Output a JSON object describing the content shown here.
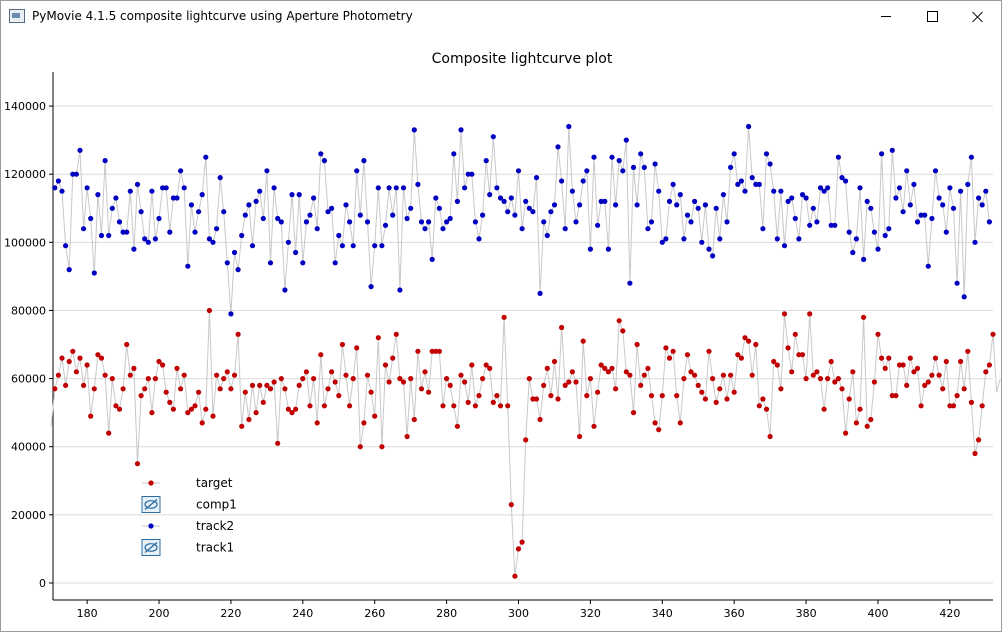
{
  "window": {
    "title": "PyMovie 4.1.5 composite lightcurve using Aperture Photometry",
    "minimize_icon": "minimize-icon",
    "maximize_icon": "maximize-icon",
    "close_icon": "close-icon"
  },
  "chart_data": {
    "type": "scatter",
    "title": "Composite lightcurve plot",
    "xlabel": "",
    "ylabel": "",
    "xlim": [
      170.5,
      432
    ],
    "ylim": [
      -5000,
      150000
    ],
    "xticks": [
      180,
      200,
      220,
      240,
      260,
      280,
      300,
      320,
      340,
      360,
      380,
      400,
      420
    ],
    "yticks": [
      0,
      20000,
      40000,
      60000,
      80000,
      100000,
      120000,
      140000
    ],
    "grid": "horizontal",
    "legend_position": "lower-left",
    "x_start": 170,
    "colors": {
      "target": "#c00000",
      "track2": "#0000c0",
      "line": "#c8c8c8",
      "hidden_icon": "#2a6ea3"
    },
    "legend": [
      {
        "name": "target",
        "visible": true,
        "color": "#c00000"
      },
      {
        "name": "comp1",
        "visible": false,
        "icon": "eye-off-icon"
      },
      {
        "name": "track2",
        "visible": true,
        "color": "#0000c0"
      },
      {
        "name": "track1",
        "visible": false,
        "icon": "eye-off-icon"
      }
    ],
    "series": [
      {
        "name": "target",
        "color": "#c00000",
        "values": [
          46000,
          57000,
          61000,
          66000,
          58000,
          65000,
          68000,
          62000,
          66000,
          58000,
          64000,
          49000,
          57000,
          67000,
          66000,
          61000,
          44000,
          60000,
          52000,
          51000,
          57000,
          70000,
          61000,
          63000,
          35000,
          55000,
          57000,
          60000,
          50000,
          60000,
          65000,
          64000,
          56000,
          53000,
          51000,
          63000,
          57000,
          61000,
          50000,
          51000,
          52000,
          56000,
          47000,
          51000,
          80000,
          49000,
          61000,
          57000,
          60000,
          62000,
          57000,
          61000,
          73000,
          46000,
          56000,
          48000,
          58000,
          50000,
          58000,
          53000,
          58000,
          57000,
          59000,
          41000,
          60000,
          57000,
          51000,
          50000,
          51000,
          58000,
          60000,
          62000,
          52000,
          60000,
          47000,
          67000,
          52000,
          57000,
          62000,
          59000,
          55000,
          70000,
          61000,
          52000,
          60000,
          69000,
          40000,
          47000,
          61000,
          56000,
          49000,
          72000,
          40000,
          64000,
          59000,
          66000,
          73000,
          60000,
          59000,
          43000,
          60000,
          48000,
          68000,
          57000,
          62000,
          56000,
          68000,
          68000,
          68000,
          52000,
          60000,
          58000,
          52000,
          46000,
          61000,
          59000,
          53000,
          64000,
          52000,
          55000,
          60000,
          64000,
          63000,
          53000,
          55000,
          52000,
          78000,
          52000,
          23000,
          2000,
          10000,
          12000,
          42000,
          60000,
          54000,
          54000,
          48000,
          58000,
          63000,
          55000,
          65000,
          54000,
          75000,
          58000,
          59000,
          62000,
          59000,
          43000,
          71000,
          55000,
          60000,
          46000,
          56000,
          64000,
          63000,
          62000,
          63000,
          57000,
          77000,
          74000,
          62000,
          61000,
          50000,
          70000,
          58000,
          61000,
          63000,
          55000,
          47000,
          45000,
          55000,
          69000,
          66000,
          68000,
          55000,
          47000,
          60000,
          67000,
          62000,
          61000,
          58000,
          56000,
          54000,
          68000,
          60000,
          53000,
          57000,
          61000,
          54000,
          61000,
          56000,
          67000,
          66000,
          72000,
          71000,
          61000,
          70000,
          52000,
          54000,
          51000,
          43000,
          65000,
          64000,
          57000,
          79000,
          69000,
          62000,
          73000,
          67000,
          67000,
          60000,
          79000,
          61000,
          62000,
          60000,
          51000,
          60000,
          65000,
          59000,
          60000,
          57000,
          44000,
          54000,
          62000,
          47000,
          51000,
          78000,
          46000,
          48000,
          59000,
          73000,
          66000,
          63000,
          66000,
          55000,
          55000,
          64000,
          64000,
          58000,
          66000,
          62000,
          63000,
          52000,
          58000,
          59000,
          61000,
          66000,
          61000,
          57000,
          65000,
          52000,
          52000,
          55000,
          65000,
          57000,
          68000,
          53000,
          38000,
          42000,
          52000,
          62000,
          64000,
          73000,
          56000,
          60000
        ]
      },
      {
        "name": "track2",
        "color": "#0000c0",
        "values": [
          116000,
          116000,
          118000,
          115000,
          99000,
          92000,
          120000,
          120000,
          127000,
          104000,
          116000,
          107000,
          91000,
          114000,
          102000,
          124000,
          102000,
          110000,
          113000,
          106000,
          103000,
          103000,
          115000,
          98000,
          117000,
          109000,
          101000,
          100000,
          115000,
          101000,
          107000,
          116000,
          116000,
          103000,
          113000,
          113000,
          121000,
          116000,
          93000,
          111000,
          103000,
          109000,
          114000,
          125000,
          101000,
          100000,
          104000,
          119000,
          109000,
          94000,
          79000,
          97000,
          92000,
          102000,
          108000,
          111000,
          99000,
          112000,
          115000,
          107000,
          121000,
          94000,
          116000,
          107000,
          106000,
          86000,
          100000,
          114000,
          97000,
          114000,
          94000,
          106000,
          108000,
          113000,
          104000,
          126000,
          124000,
          109000,
          110000,
          94000,
          102000,
          99000,
          111000,
          106000,
          99000,
          121000,
          108000,
          124000,
          106000,
          87000,
          99000,
          116000,
          99000,
          105000,
          116000,
          108000,
          116000,
          86000,
          116000,
          107000,
          110000,
          133000,
          117000,
          106000,
          104000,
          106000,
          95000,
          113000,
          110000,
          104000,
          106000,
          107000,
          126000,
          112000,
          133000,
          116000,
          120000,
          120000,
          106000,
          101000,
          108000,
          124000,
          114000,
          131000,
          116000,
          113000,
          112000,
          109000,
          113000,
          108000,
          121000,
          104000,
          112000,
          110000,
          109000,
          119000,
          85000,
          106000,
          102000,
          109000,
          111000,
          128000,
          118000,
          104000,
          134000,
          115000,
          106000,
          111000,
          118000,
          121000,
          98000,
          125000,
          105000,
          112000,
          112000,
          98000,
          125000,
          111000,
          124000,
          121000,
          130000,
          88000,
          122000,
          111000,
          126000,
          122000,
          104000,
          106000,
          123000,
          115000,
          100000,
          101000,
          112000,
          117000,
          111000,
          114000,
          101000,
          108000,
          106000,
          112000,
          110000,
          100000,
          111000,
          98000,
          96000,
          110000,
          101000,
          114000,
          106000,
          122000,
          126000,
          117000,
          118000,
          115000,
          134000,
          119000,
          117000,
          117000,
          104000,
          126000,
          123000,
          115000,
          101000,
          115000,
          99000,
          112000,
          113000,
          107000,
          101000,
          114000,
          113000,
          105000,
          110000,
          106000,
          116000,
          115000,
          116000,
          105000,
          105000,
          125000,
          119000,
          118000,
          103000,
          97000,
          101000,
          116000,
          95000,
          112000,
          110000,
          103000,
          98000,
          126000,
          102000,
          104000,
          127000,
          113000,
          116000,
          109000,
          121000,
          111000,
          117000,
          106000,
          108000,
          108000,
          93000,
          107000,
          121000,
          113000,
          111000,
          103000,
          116000,
          110000,
          88000,
          115000,
          84000,
          117000,
          125000,
          100000,
          113000,
          111000,
          115000,
          106000
        ]
      }
    ]
  }
}
